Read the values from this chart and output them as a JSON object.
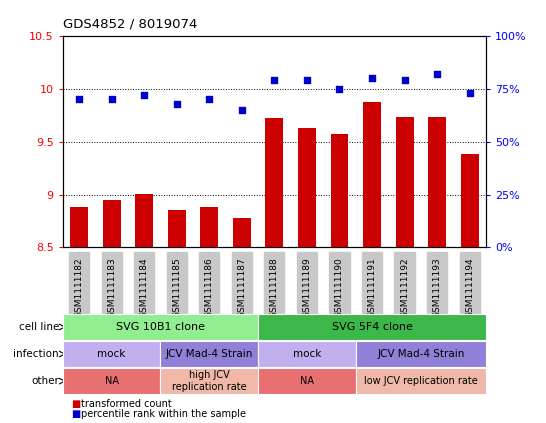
{
  "title": "GDS4852 / 8019074",
  "samples": [
    "GSM1111182",
    "GSM1111183",
    "GSM1111184",
    "GSM1111185",
    "GSM1111186",
    "GSM1111187",
    "GSM1111188",
    "GSM1111189",
    "GSM1111190",
    "GSM1111191",
    "GSM1111192",
    "GSM1111193",
    "GSM1111194"
  ],
  "bar_values": [
    8.88,
    8.95,
    9.01,
    8.85,
    8.88,
    8.78,
    9.72,
    9.63,
    9.57,
    9.88,
    9.73,
    9.73,
    9.38
  ],
  "dot_values": [
    70,
    70,
    72,
    68,
    70,
    65,
    79,
    79,
    75,
    80,
    79,
    82,
    73
  ],
  "ylim_left": [
    8.5,
    10.5
  ],
  "ylim_right": [
    0,
    100
  ],
  "yticks_left": [
    8.5,
    9.0,
    9.5,
    10.0,
    10.5
  ],
  "yticks_right": [
    0,
    25,
    50,
    75,
    100
  ],
  "bar_color": "#cc0000",
  "dot_color": "#0000cc",
  "tick_bg_color": "#c8c8c8",
  "cell_line_spans": [
    {
      "start": 0,
      "end": 5,
      "label": "SVG 10B1 clone",
      "color": "#90ee90"
    },
    {
      "start": 6,
      "end": 12,
      "label": "SVG 5F4 clone",
      "color": "#3cb84a"
    }
  ],
  "infection_spans": [
    {
      "start": 0,
      "end": 2,
      "label": "mock",
      "color": "#c0b0f0"
    },
    {
      "start": 3,
      "end": 5,
      "label": "JCV Mad-4 Strain",
      "color": "#9080d8"
    },
    {
      "start": 6,
      "end": 8,
      "label": "mock",
      "color": "#c0b0f0"
    },
    {
      "start": 9,
      "end": 12,
      "label": "JCV Mad-4 Strain",
      "color": "#9080d8"
    }
  ],
  "other_spans": [
    {
      "start": 0,
      "end": 2,
      "label": "NA",
      "color": "#e87070"
    },
    {
      "start": 3,
      "end": 5,
      "label": "high JCV\nreplication rate",
      "color": "#f0b8a8"
    },
    {
      "start": 6,
      "end": 8,
      "label": "NA",
      "color": "#e87070"
    },
    {
      "start": 9,
      "end": 12,
      "label": "low JCV replication rate",
      "color": "#f0b8a8"
    }
  ],
  "row_labels": [
    "cell line",
    "infection",
    "other"
  ],
  "legend_bar": "transformed count",
  "legend_dot": "percentile rank within the sample"
}
